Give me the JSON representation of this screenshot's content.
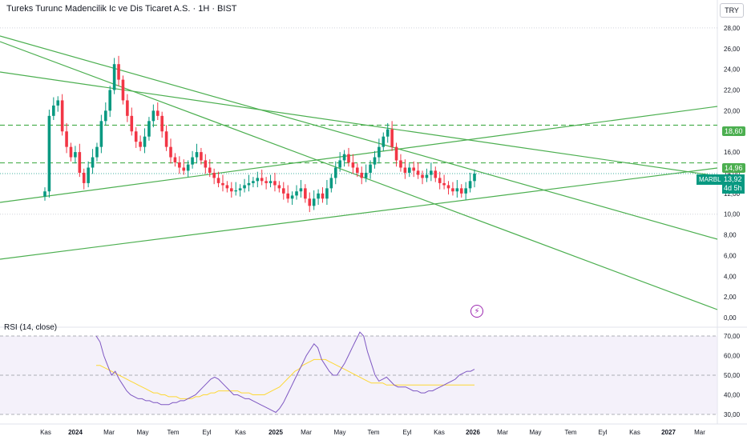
{
  "header": {
    "title": "Tureks Turunc Madencilik Ic ve Dis Ticaret A.S. · 1H · BIST",
    "currency": "TRY"
  },
  "rsi": {
    "label": "RSI (14, close)",
    "ticks": [
      "70,00",
      "60,00",
      "50,00",
      "40,00",
      "30,00"
    ]
  },
  "price_labels": {
    "symbol": "MARBL",
    "last": "13,92",
    "countdown": "4d 5h",
    "level_high": "18,60",
    "level_mid": "14,96"
  },
  "colors": {
    "up": "#089981",
    "down": "#f23645",
    "trend": "#4caf50",
    "rsi_line": "#7e57c2",
    "rsi_ma": "#fdd835",
    "rsi_band": "#ede7f6"
  },
  "chart_data": [
    {
      "type": "candlestick",
      "ylim": [
        0,
        29
      ],
      "y_ticks": [
        "28,00",
        "26,00",
        "24,00",
        "22,00",
        "20,00",
        "18,00",
        "16,00",
        "14,00",
        "12,00",
        "10,00",
        "8,00",
        "6,00",
        "4,00",
        "2,00",
        "0,00"
      ],
      "x_ticks": [
        "Kas",
        "2024",
        "Mar",
        "May",
        "Tem",
        "Eyl",
        "Kas",
        "2025",
        "Mar",
        "May",
        "Tem",
        "Eyl",
        "Kas",
        "2026",
        "Mar",
        "May",
        "Tem",
        "Eyl",
        "Kas",
        "2027",
        "Mar"
      ],
      "horizontal_levels": [
        18.6,
        14.96
      ],
      "close": [
        12.2,
        19.5,
        20.5,
        21,
        18,
        16.5,
        15.5,
        16,
        14,
        13,
        14.5,
        15.5,
        16.5,
        19,
        20,
        22,
        24.5,
        23,
        21,
        19.5,
        18,
        17,
        16.5,
        17.5,
        19,
        20,
        19.5,
        18,
        16.5,
        15.5,
        15,
        14.5,
        14.2,
        14.8,
        15.5,
        16,
        15.2,
        14.5,
        14,
        13.5,
        13,
        12.8,
        12.5,
        12.2,
        12.3,
        12.5,
        12.8,
        13,
        13.2,
        13.5,
        13.2,
        13,
        13.2,
        12.8,
        12.5,
        12,
        11.5,
        11.8,
        12.2,
        12.5,
        11.5,
        10.8,
        11.5,
        12,
        11.5,
        12.5,
        13.5,
        14.5,
        15.2,
        15.8,
        15,
        14.5,
        14,
        13.5,
        14,
        14.8,
        15.5,
        16.5,
        17.5,
        18.2,
        16.5,
        15.2,
        14.5,
        14,
        14.5,
        14.2,
        13.8,
        13.5,
        13.8,
        14.2,
        13.5,
        13,
        12.8,
        12.5,
        12.2,
        12.5,
        12,
        12.5,
        13.2,
        13.92
      ],
      "series": [
        {
          "name": "RSI (14, close)",
          "ylim": [
            30,
            70
          ],
          "values": [
            70,
            67,
            60,
            55,
            50,
            52,
            48,
            45,
            42,
            40,
            39,
            38,
            38,
            37,
            37,
            36,
            36,
            35,
            35,
            35,
            36,
            36,
            37,
            37,
            38,
            39,
            40,
            42,
            44,
            46,
            48,
            49,
            48,
            46,
            44,
            42,
            40,
            40,
            39,
            38,
            38,
            37,
            36,
            35,
            34,
            33,
            32,
            31,
            33,
            36,
            40,
            44,
            48,
            52,
            56,
            60,
            63,
            66,
            64,
            58,
            55,
            52,
            50,
            50,
            53,
            56,
            60,
            64,
            68,
            72,
            70,
            62,
            56,
            50,
            47,
            48,
            49,
            47,
            45,
            44,
            44,
            44,
            43,
            42,
            42,
            41,
            41,
            42,
            42,
            43,
            44,
            45,
            46,
            47,
            48,
            50,
            51,
            52,
            52,
            53
          ]
        },
        {
          "name": "MA",
          "values": [
            55,
            55,
            54,
            53,
            52,
            51,
            50,
            49,
            48,
            47,
            46,
            45,
            44,
            43,
            42,
            41,
            41,
            40,
            40,
            39,
            39,
            39,
            38,
            38,
            38,
            38,
            39,
            39,
            40,
            40,
            41,
            41,
            42,
            42,
            42,
            42,
            42,
            42,
            41,
            41,
            41,
            40,
            40,
            40,
            40,
            41,
            42,
            43,
            44,
            46,
            48,
            50,
            52,
            53,
            55,
            56,
            57,
            58,
            58,
            58,
            58,
            57,
            56,
            55,
            54,
            53,
            52,
            51,
            50,
            49,
            48,
            47,
            46,
            46,
            46,
            46,
            45,
            45,
            45,
            45,
            45,
            45,
            45,
            45,
            45,
            45,
            45,
            45,
            45,
            45,
            45,
            45,
            45,
            45,
            45,
            45,
            45,
            45,
            45,
            45
          ]
        }
      ]
    }
  ]
}
